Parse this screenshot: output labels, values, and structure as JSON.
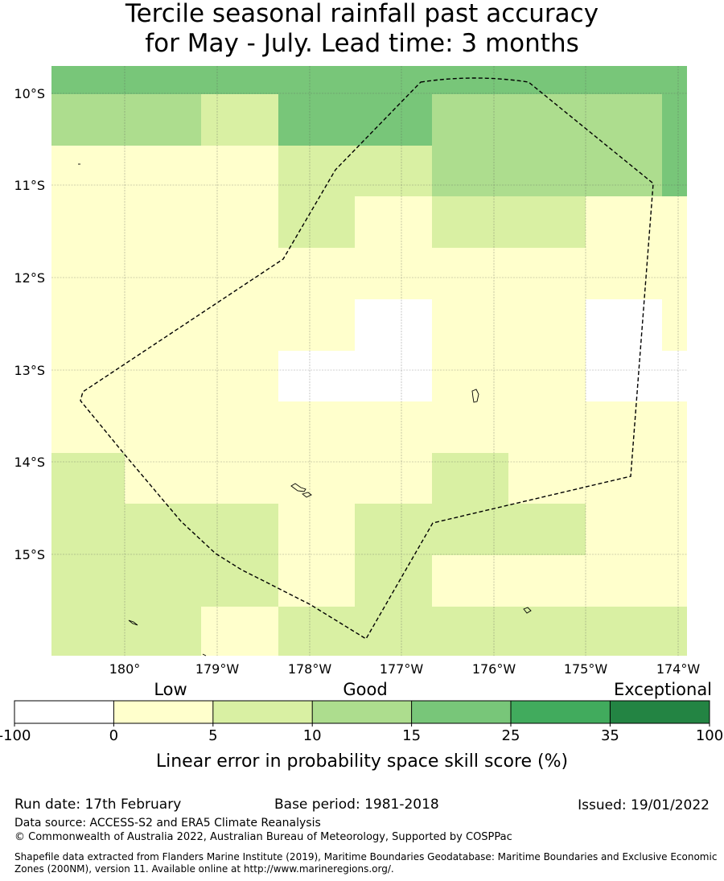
{
  "title": {
    "line1": "Tercile seasonal rainfall past accuracy",
    "line2": "for May - July. Lead time: 3 months"
  },
  "map": {
    "lat_labels": [
      "10°S",
      "11°S",
      "12°S",
      "13°S",
      "14°S",
      "15°S"
    ],
    "lon_labels": [
      "180°",
      "179°W",
      "178°W",
      "177°W",
      "176°W",
      "175°W",
      "174°W"
    ],
    "grid_lines": true,
    "boundary_style": "dashed"
  },
  "colorbar": {
    "category_labels": [
      "Low",
      "Good",
      "Exceptional"
    ],
    "ticks": [
      "-100",
      "0",
      "5",
      "10",
      "15",
      "25",
      "35",
      "100"
    ],
    "colors": [
      "#ffffff",
      "#ffffcc",
      "#d9f0a3",
      "#addd8e",
      "#78c679",
      "#41ab5d",
      "#238443"
    ],
    "label": "Linear error in probability space skill score (%)"
  },
  "footer": {
    "run_date": "Run date: 17th February",
    "base_period": "Base period: 1981-2018",
    "issued": "Issued: 19/01/2022",
    "data_source": "Data source: ACCESS-S2 and ERA5 Climate Reanalysis",
    "copyright": "© Commonwealth of Australia 2022, Australian Bureau of Meteorology, Supported by COSPPac",
    "shapefile": "Shapefile data extracted from Flanders Marine Institute (2019), Maritime Boundaries Geodatabase: Maritime Boundaries and Exclusive Economic Zones (200NM), version 11. Available online at http://www.marineregions.org/."
  }
}
